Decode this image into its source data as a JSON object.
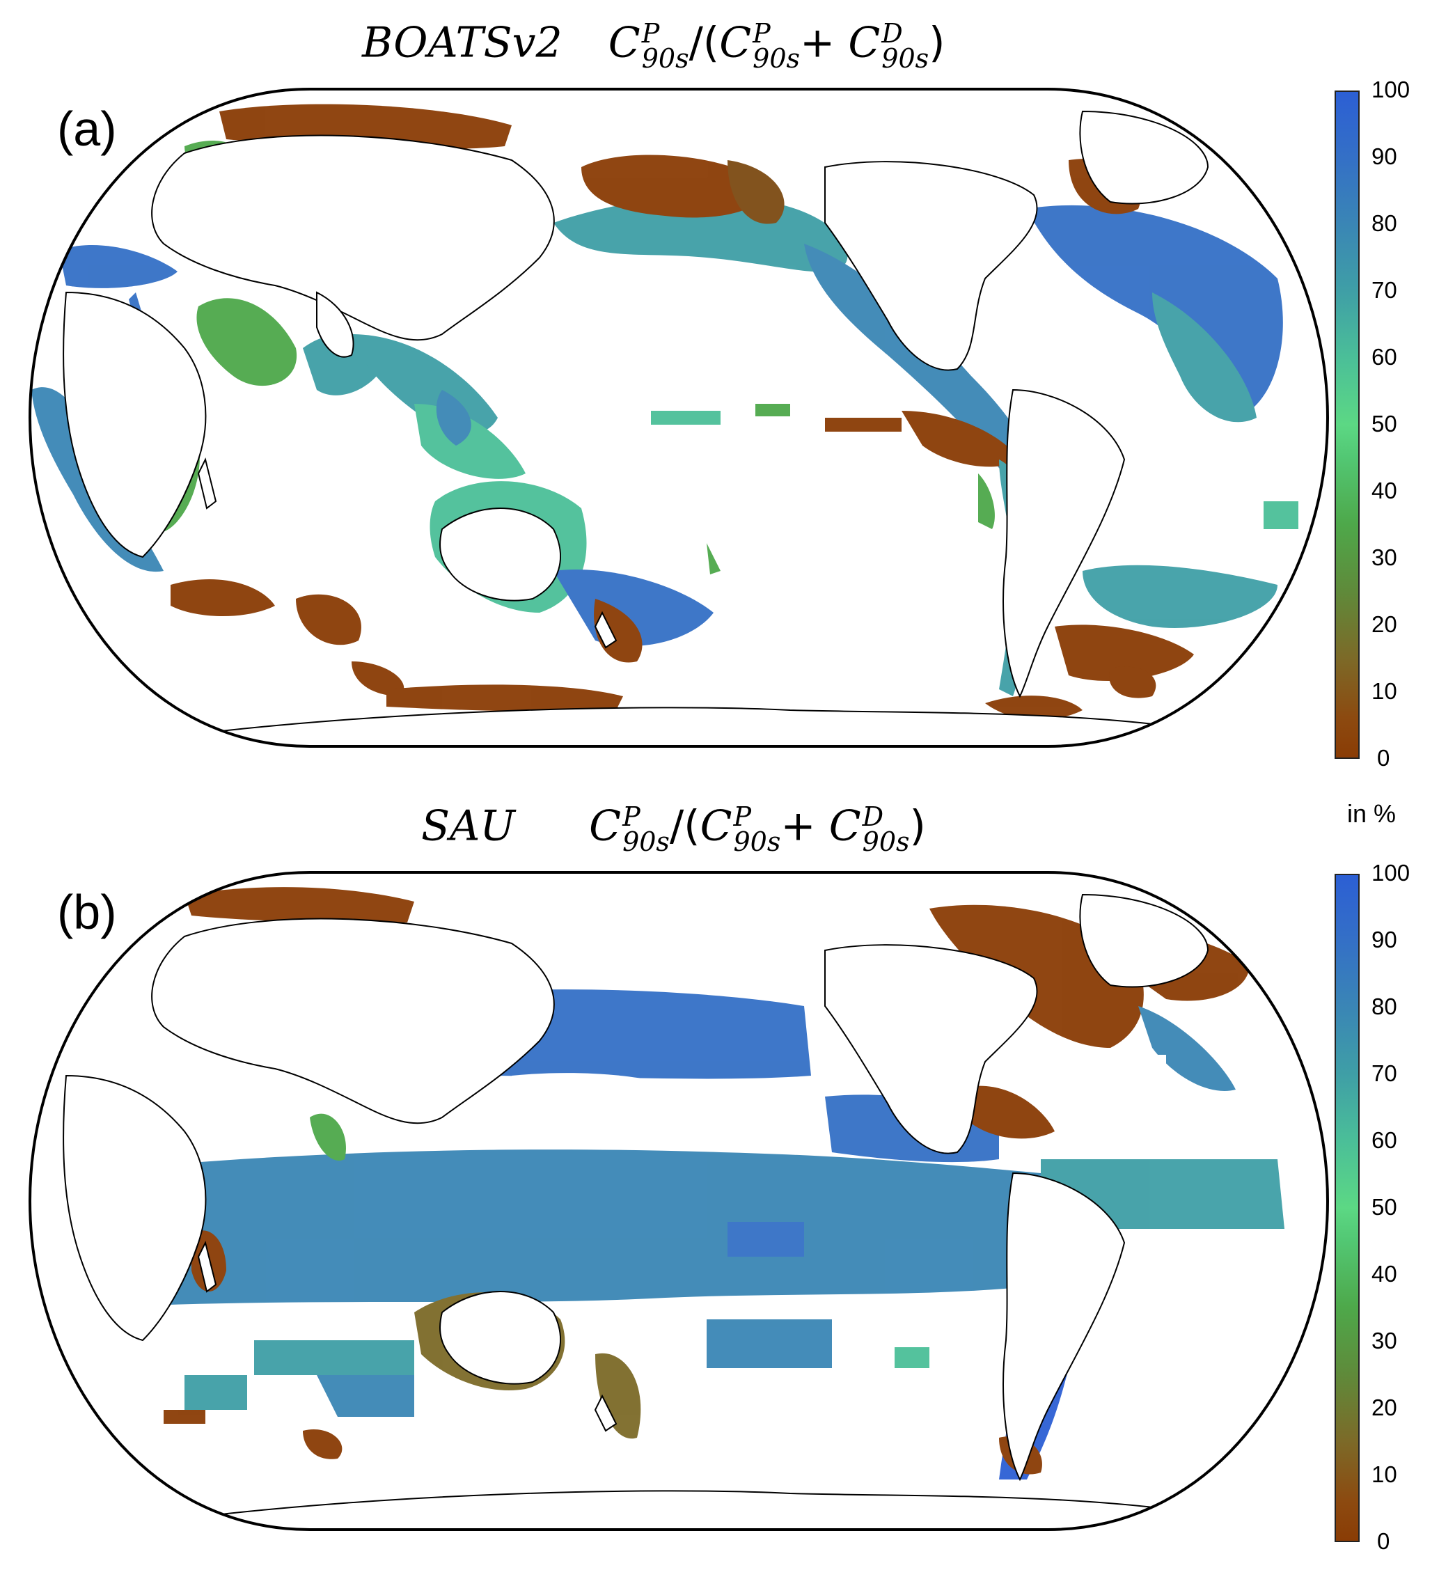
{
  "panel_a": {
    "label": "(a)",
    "title_model": "BOATSv2",
    "map_name": "global-map-boats"
  },
  "panel_b": {
    "label": "(b)",
    "title_model": "SAU",
    "map_name": "global-map-sau"
  },
  "formula": {
    "c": "C",
    "sup_p": "P",
    "sup_d": "D",
    "sub": "90s",
    "slash": "/",
    "open": "(",
    "plus": "+",
    "close": ")"
  },
  "colorbar": {
    "ticks": [
      "100",
      "90",
      "80",
      "70",
      "60",
      "50",
      "40",
      "30",
      "20",
      "10",
      "0"
    ],
    "unit": "in %",
    "range": [
      0,
      100
    ],
    "colors": [
      "#8a3c05",
      "#7c6a28",
      "#4ea84a",
      "#5cd884",
      "#3f9fa6",
      "#2c5fd4"
    ]
  }
}
